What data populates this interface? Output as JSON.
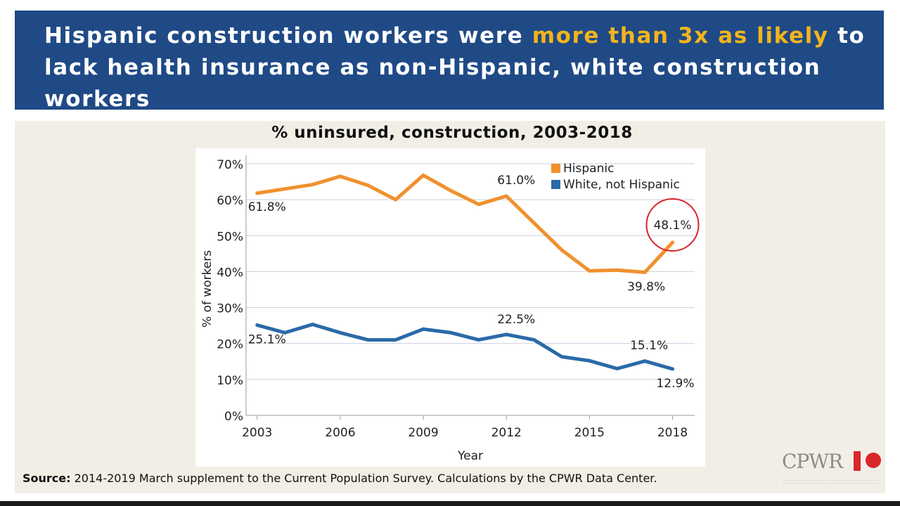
{
  "banner": {
    "title_part1": "Hispanic construction workers were ",
    "title_highlight": "more than 3x as likely",
    "title_part2": " to lack health insurance as non-Hispanic, white construction workers",
    "highlight_color": "#f2b41c",
    "background_color": "#1f4a86"
  },
  "chart_data": {
    "type": "line",
    "title": "% uninsured, construction, 2003-2018",
    "xlabel": "Year",
    "ylabel": "% of workers",
    "x": [
      2003,
      2004,
      2005,
      2006,
      2007,
      2008,
      2009,
      2010,
      2011,
      2012,
      2013,
      2014,
      2015,
      2016,
      2017,
      2018
    ],
    "xticks": [
      2003,
      2006,
      2009,
      2012,
      2015,
      2018
    ],
    "ylim": [
      0,
      70
    ],
    "yticks": [
      0,
      10,
      20,
      30,
      40,
      50,
      60,
      70
    ],
    "ytick_labels": [
      "0%",
      "10%",
      "20%",
      "30%",
      "40%",
      "50%",
      "60%",
      "70%"
    ],
    "grid": true,
    "legend_position": "top-right",
    "series": [
      {
        "name": "Hispanic",
        "color": "#f0912e",
        "values": [
          61.8,
          63.0,
          64.2,
          66.5,
          64.0,
          60.0,
          66.8,
          62.5,
          58.7,
          61.0,
          53.5,
          46.0,
          40.2,
          40.4,
          39.8,
          48.1
        ]
      },
      {
        "name": "White, not Hispanic",
        "color": "#2a6aa8",
        "values": [
          25.1,
          23.0,
          25.3,
          23.0,
          21.0,
          21.0,
          24.0,
          23.0,
          21.0,
          22.5,
          21.0,
          16.3,
          15.2,
          13.0,
          15.1,
          12.9
        ]
      }
    ],
    "annotations": [
      {
        "series": 0,
        "index": 0,
        "text": "61.8%"
      },
      {
        "series": 0,
        "index": 9,
        "text": "61.0%"
      },
      {
        "series": 0,
        "index": 14,
        "text": "39.8%"
      },
      {
        "series": 0,
        "index": 15,
        "text": "48.1%",
        "circled": true
      },
      {
        "series": 1,
        "index": 0,
        "text": "25.1%"
      },
      {
        "series": 1,
        "index": 9,
        "text": "22.5%"
      },
      {
        "series": 1,
        "index": 14,
        "text": "15.1%"
      },
      {
        "series": 1,
        "index": 15,
        "text": "12.9%"
      }
    ],
    "highlight_circle_color": "#d9262b"
  },
  "source": {
    "label": "Source:",
    "text": "2014-2019 March supplement to the Current Population Survey. Calculations by the CPWR Data Center."
  },
  "logo": {
    "text": "CPWR"
  }
}
